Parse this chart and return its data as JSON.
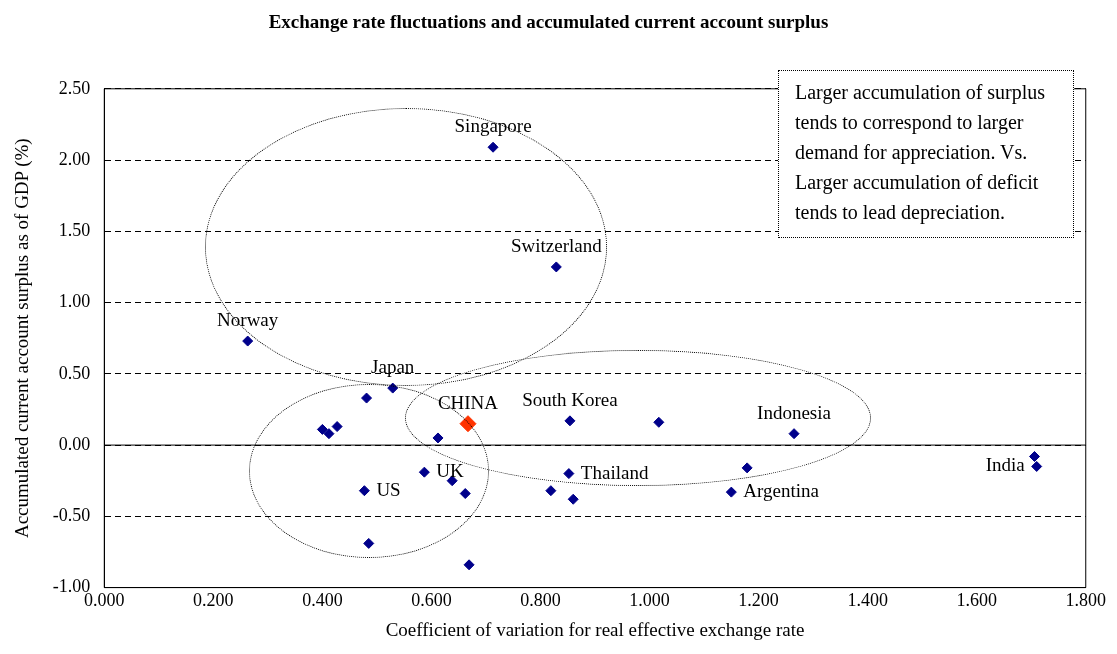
{
  "chart_data": {
    "type": "scatter",
    "title": "Exchange rate fluctuations and accumulated current account surplus",
    "xlabel": "Coefficient of variation for real effective exchange rate",
    "ylabel": "Accumulated current account surplus as of GDP (%)",
    "series": [
      {
        "color": "#00008b",
        "x": [
          0.713,
          0.829,
          0.263,
          0.529,
          0.481,
          0.4,
          0.412,
          0.427,
          0.612,
          0.854,
          1.017,
          1.265,
          1.706,
          1.71,
          0.477,
          0.587,
          0.638,
          0.662,
          0.485,
          0.669,
          0.819,
          0.852,
          0.86,
          1.15,
          1.179
        ],
        "values": [
          2.09,
          1.25,
          0.73,
          0.4,
          0.33,
          0.11,
          0.08,
          0.13,
          0.05,
          0.17,
          0.16,
          0.08,
          -0.08,
          -0.15,
          -0.32,
          -0.19,
          -0.25,
          -0.34,
          -0.69,
          -0.84,
          -0.32,
          -0.2,
          -0.38,
          -0.33,
          -0.16
        ]
      },
      {
        "color": "#ff3300",
        "x": [
          0.667
        ],
        "values": [
          0.15
        ]
      }
    ],
    "marker": "diamond",
    "xlim": [
      0,
      1.8
    ],
    "ylim": [
      -1,
      2.5
    ],
    "xticks": [
      {
        "value": 0,
        "label": "0.000"
      },
      {
        "value": 0.2,
        "label": "0.200"
      },
      {
        "value": 0.4,
        "label": "0.400"
      },
      {
        "value": 0.6,
        "label": "0.600"
      },
      {
        "value": 0.8,
        "label": "0.800"
      },
      {
        "value": 1,
        "label": "1.000"
      },
      {
        "value": 1.2,
        "label": "1.200"
      },
      {
        "value": 1.4,
        "label": "1.400"
      },
      {
        "value": 1.6,
        "label": "1.600"
      },
      {
        "value": 1.8,
        "label": "1.800"
      }
    ],
    "yticks": [
      {
        "value": -1,
        "label": "-1.00"
      },
      {
        "value": -0.5,
        "label": "-0.50"
      },
      {
        "value": 0,
        "label": "0.00"
      },
      {
        "value": 0.5,
        "label": "0.50"
      },
      {
        "value": 1,
        "label": "1.00"
      },
      {
        "value": 1.5,
        "label": "1.50"
      },
      {
        "value": 2,
        "label": "2.00"
      },
      {
        "value": 2.5,
        "label": "2.50"
      }
    ],
    "grid": "y",
    "legend": false,
    "annotations": [
      {
        "text": "Singapore",
        "x": 0.713,
        "y": 2.09
      },
      {
        "text": "Switzerland",
        "x": 0.829,
        "y": 1.25
      },
      {
        "text": "Norway",
        "x": 0.263,
        "y": 0.73
      },
      {
        "text": "Japan",
        "x": 0.529,
        "y": 0.4
      },
      {
        "text": "CHINA",
        "x": 0.667,
        "y": 0.15
      },
      {
        "text": "South Korea",
        "x": 0.854,
        "y": 0.17
      },
      {
        "text": "Indonesia",
        "x": 1.265,
        "y": 0.08
      },
      {
        "text": "US",
        "x": 0.477,
        "y": -0.32
      },
      {
        "text": "UK",
        "x": 0.587,
        "y": -0.19
      },
      {
        "text": "India",
        "x": 1.71,
        "y": -0.15
      },
      {
        "text": "Argentina",
        "x": 1.15,
        "y": -0.33
      },
      {
        "text": "Thailand",
        "x": 0.852,
        "y": -0.2
      },
      "Larger accumulation of surplus tends to correspond to larger demand for appreciation. Vs. Larger accumulation of deficit tends to lead depreciation."
    ]
  }
}
